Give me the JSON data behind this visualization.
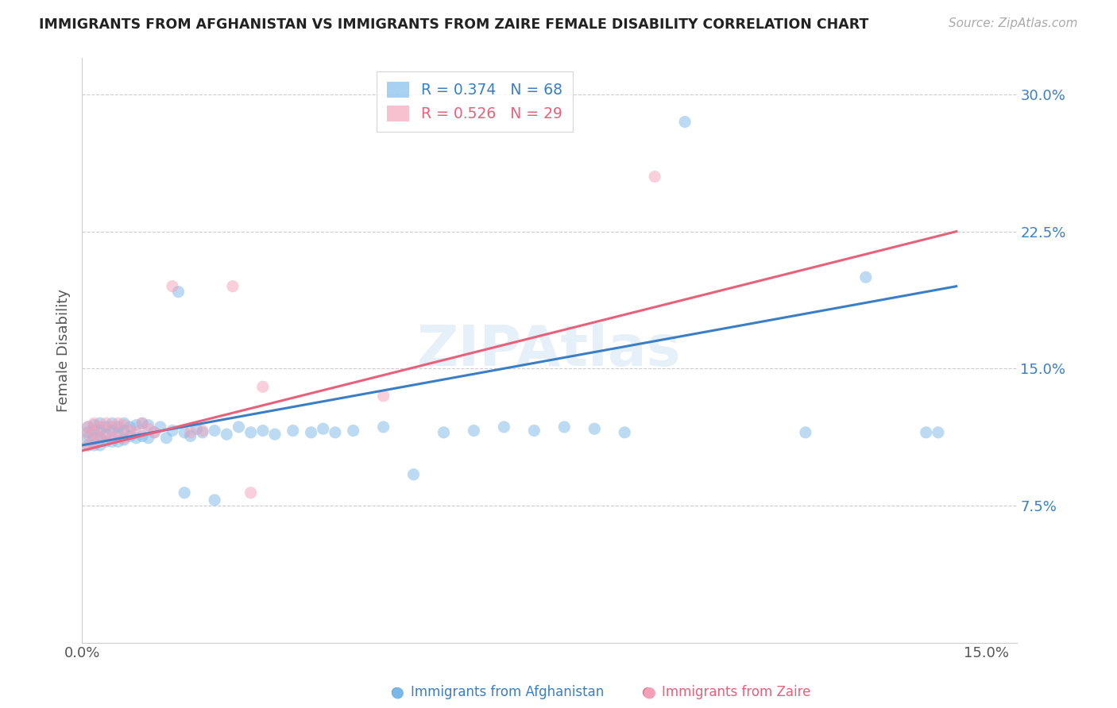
{
  "title": "IMMIGRANTS FROM AFGHANISTAN VS IMMIGRANTS FROM ZAIRE FEMALE DISABILITY CORRELATION CHART",
  "source": "Source: ZipAtlas.com",
  "ylabel": "Female Disability",
  "ytick_vals": [
    0.075,
    0.15,
    0.225,
    0.3
  ],
  "ytick_labels": [
    "7.5%",
    "15.0%",
    "22.5%",
    "30.0%"
  ],
  "xtick_vals": [
    0.0,
    0.15
  ],
  "xtick_labels": [
    "0.0%",
    "15.0%"
  ],
  "xlim": [
    0.0,
    0.155
  ],
  "ylim": [
    0.0,
    0.32
  ],
  "legend_r1": "R = 0.374",
  "legend_n1": "N = 68",
  "legend_r2": "R = 0.526",
  "legend_n2": "N = 29",
  "color_blue": "#7ab8e8",
  "color_pink": "#f4a0b8",
  "color_blue_line": "#3a7ec6",
  "color_pink_line": "#e8607a",
  "color_blue_text": "#3a7ec6",
  "color_pink_text": "#e8607a",
  "watermark": "ZIPAtlas",
  "afg_line_x0": 0.0,
  "afg_line_y0": 0.108,
  "afg_line_x1": 0.145,
  "afg_line_y1": 0.195,
  "zai_line_x0": 0.0,
  "zai_line_y0": 0.105,
  "zai_line_x1": 0.145,
  "zai_line_y1": 0.225,
  "afg_x": [
    0.001,
    0.001,
    0.001,
    0.001,
    0.002,
    0.002,
    0.002,
    0.002,
    0.003,
    0.003,
    0.003,
    0.003,
    0.004,
    0.004,
    0.004,
    0.005,
    0.005,
    0.005,
    0.006,
    0.006,
    0.006,
    0.007,
    0.007,
    0.007,
    0.008,
    0.008,
    0.009,
    0.009,
    0.01,
    0.01,
    0.011,
    0.011,
    0.012,
    0.013,
    0.014,
    0.015,
    0.016,
    0.017,
    0.018,
    0.019,
    0.02,
    0.022,
    0.024,
    0.026,
    0.028,
    0.03,
    0.032,
    0.035,
    0.038,
    0.04,
    0.042,
    0.045,
    0.05,
    0.055,
    0.06,
    0.065,
    0.07,
    0.075,
    0.08,
    0.085,
    0.09,
    0.1,
    0.12,
    0.13,
    0.14,
    0.142,
    0.017,
    0.022
  ],
  "afg_y": [
    0.118,
    0.115,
    0.112,
    0.108,
    0.119,
    0.116,
    0.112,
    0.108,
    0.12,
    0.116,
    0.112,
    0.108,
    0.118,
    0.114,
    0.11,
    0.12,
    0.116,
    0.11,
    0.118,
    0.115,
    0.11,
    0.12,
    0.116,
    0.111,
    0.118,
    0.113,
    0.119,
    0.112,
    0.12,
    0.113,
    0.119,
    0.112,
    0.115,
    0.118,
    0.112,
    0.116,
    0.192,
    0.115,
    0.113,
    0.117,
    0.115,
    0.116,
    0.114,
    0.118,
    0.115,
    0.116,
    0.114,
    0.116,
    0.115,
    0.117,
    0.115,
    0.116,
    0.118,
    0.092,
    0.115,
    0.116,
    0.118,
    0.116,
    0.118,
    0.117,
    0.115,
    0.285,
    0.115,
    0.2,
    0.115,
    0.115,
    0.082,
    0.078
  ],
  "zai_x": [
    0.001,
    0.001,
    0.001,
    0.002,
    0.002,
    0.002,
    0.003,
    0.003,
    0.004,
    0.004,
    0.005,
    0.005,
    0.006,
    0.006,
    0.007,
    0.007,
    0.008,
    0.009,
    0.01,
    0.011,
    0.012,
    0.015,
    0.018,
    0.02,
    0.025,
    0.03,
    0.05,
    0.095,
    0.028
  ],
  "zai_y": [
    0.118,
    0.114,
    0.108,
    0.12,
    0.115,
    0.109,
    0.118,
    0.112,
    0.12,
    0.113,
    0.118,
    0.112,
    0.12,
    0.113,
    0.119,
    0.112,
    0.116,
    0.115,
    0.12,
    0.117,
    0.115,
    0.195,
    0.115,
    0.116,
    0.195,
    0.14,
    0.135,
    0.255,
    0.082
  ]
}
